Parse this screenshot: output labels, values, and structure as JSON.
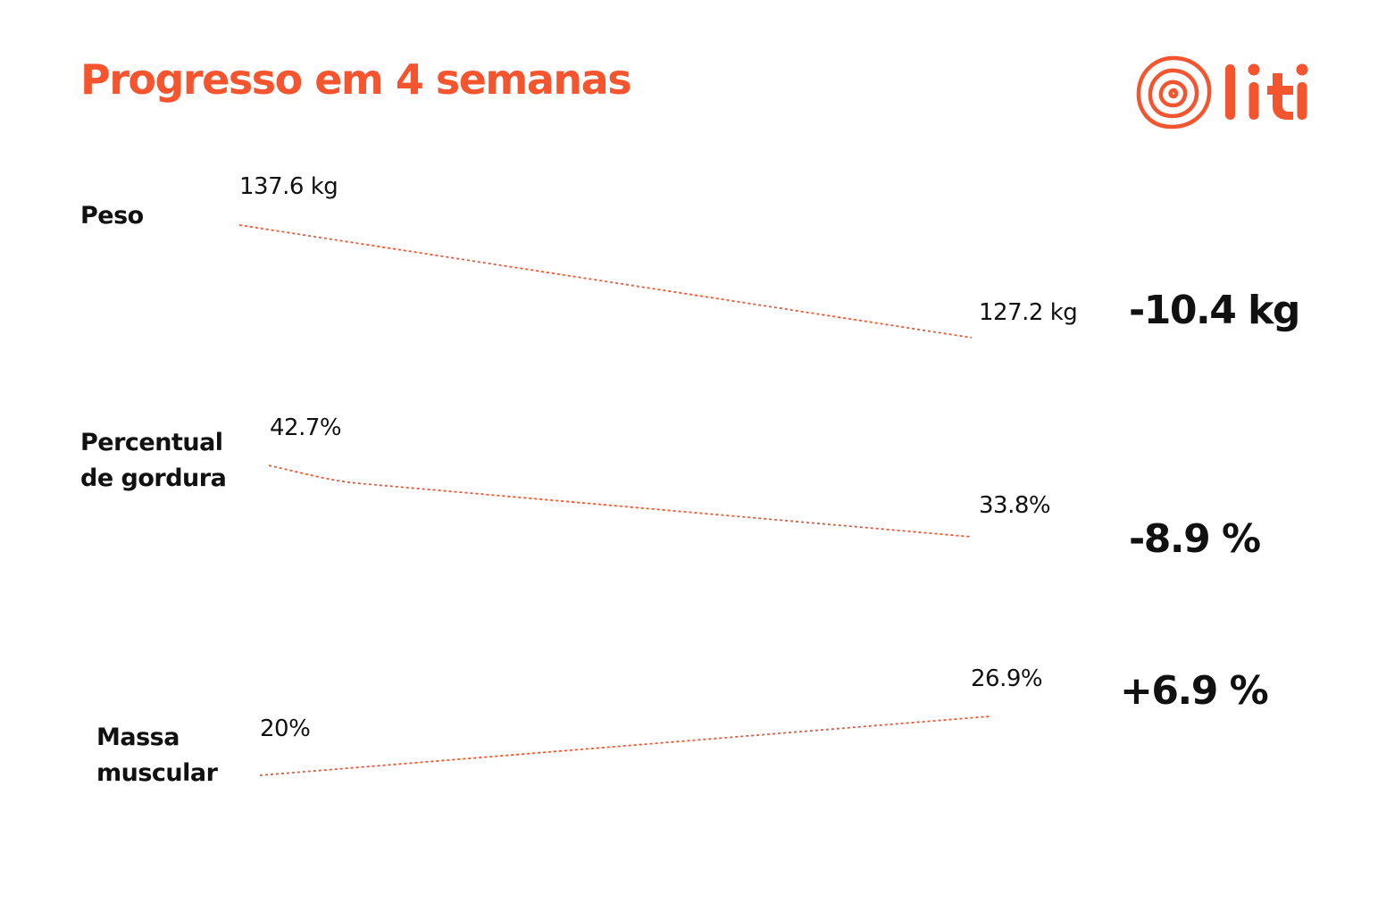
{
  "title": "Progresso em 4 semanas",
  "logo": {
    "text": "liti",
    "icon": "concentric-rings-icon",
    "color": "#f4552e"
  },
  "colors": {
    "accent": "#f4552e",
    "text": "#111111"
  },
  "chart_data": {
    "type": "line",
    "title": "Progresso em 4 semanas",
    "metrics": [
      {
        "label_lines": [
          "Peso"
        ],
        "start_label": "137.6 kg",
        "end_label": "127.2 kg",
        "start": 137.6,
        "end": 127.2,
        "unit": "kg",
        "delta_label": "-10.4 kg"
      },
      {
        "label_lines": [
          "Percentual",
          "de gordura"
        ],
        "start_label": "42.7%",
        "end_label": "33.8%",
        "start": 42.7,
        "end": 33.8,
        "unit": "%",
        "delta_label": "-8.9 %"
      },
      {
        "label_lines": [
          "Massa",
          "muscular"
        ],
        "start_label": "20%",
        "end_label": "26.9%",
        "start": 20,
        "end": 26.9,
        "unit": "%",
        "delta_label": "+6.9 %"
      }
    ]
  }
}
